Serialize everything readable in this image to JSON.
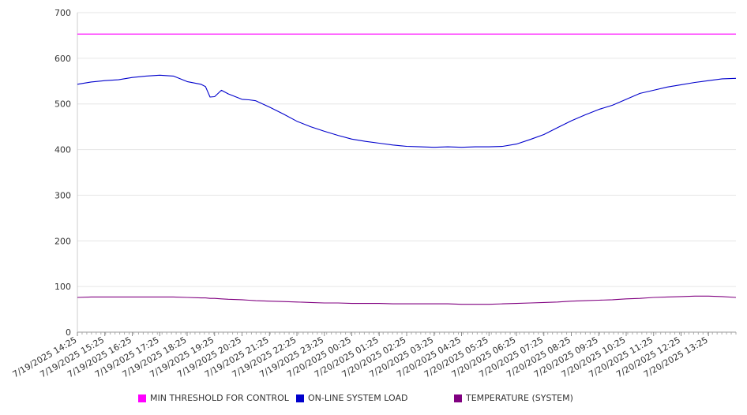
{
  "chart_data": {
    "type": "line",
    "title": "",
    "xlabel": "",
    "ylabel": "",
    "ylim": [
      0,
      700
    ],
    "y_ticks": [
      0,
      100,
      200,
      300,
      400,
      500,
      600,
      700
    ],
    "grid": "horizontal",
    "legend_position": "bottom",
    "x_tick_labels": [
      "7/19/2025 14:25",
      "7/19/2025 15:25",
      "7/19/2025 16:25",
      "7/19/2025 17:25",
      "7/19/2025 18:25",
      "7/19/2025 19:25",
      "7/19/2025 20:25",
      "7/19/2025 21:25",
      "7/19/2025 22:25",
      "7/19/2025 23:25",
      "7/20/2025 00:25",
      "7/20/2025 01:25",
      "7/20/2025 02:25",
      "7/20/2025 03:25",
      "7/20/2025 04:25",
      "7/20/2025 05:25",
      "7/20/2025 06:25",
      "7/20/2025 07:25",
      "7/20/2025 08:25",
      "7/20/2025 09:25",
      "7/20/2025 10:25",
      "7/20/2025 11:25",
      "7/20/2025 12:25",
      "7/20/2025 13:25"
    ],
    "x": [
      "7/19/2025 14:25",
      "7/19/2025 14:55",
      "7/19/2025 15:25",
      "7/19/2025 15:55",
      "7/19/2025 16:25",
      "7/19/2025 16:55",
      "7/19/2025 17:25",
      "7/19/2025 17:55",
      "7/19/2025 18:25",
      "7/19/2025 18:55",
      "7/19/2025 19:05",
      "7/19/2025 19:15",
      "7/19/2025 19:25",
      "7/19/2025 19:40",
      "7/19/2025 19:55",
      "7/19/2025 20:25",
      "7/19/2025 20:40",
      "7/19/2025 20:55",
      "7/19/2025 21:25",
      "7/19/2025 21:55",
      "7/19/2025 22:25",
      "7/19/2025 22:55",
      "7/19/2025 23:25",
      "7/19/2025 23:55",
      "7/20/2025 00:25",
      "7/20/2025 00:55",
      "7/20/2025 01:25",
      "7/20/2025 01:55",
      "7/20/2025 02:25",
      "7/20/2025 02:55",
      "7/20/2025 03:25",
      "7/20/2025 03:55",
      "7/20/2025 04:25",
      "7/20/2025 04:55",
      "7/20/2025 05:25",
      "7/20/2025 05:55",
      "7/20/2025 06:25",
      "7/20/2025 06:55",
      "7/20/2025 07:25",
      "7/20/2025 07:55",
      "7/20/2025 08:25",
      "7/20/2025 08:55",
      "7/20/2025 09:25",
      "7/20/2025 09:55",
      "7/20/2025 10:25",
      "7/20/2025 10:55",
      "7/20/2025 11:25",
      "7/20/2025 11:55",
      "7/20/2025 12:25",
      "7/20/2025 12:55",
      "7/20/2025 13:25",
      "7/20/2025 13:55",
      "7/20/2025 14:25"
    ],
    "series": [
      {
        "name": "MIN THRESHOLD FOR CONTROL",
        "color": "#ff00ff",
        "values": [
          653,
          653,
          653,
          653,
          653,
          653,
          653,
          653,
          653,
          653,
          653,
          653,
          653,
          653,
          653,
          653,
          653,
          653,
          653,
          653,
          653,
          653,
          653,
          653,
          653,
          653,
          653,
          653,
          653,
          653,
          653,
          653,
          653,
          653,
          653,
          653,
          653,
          653,
          653,
          653,
          653,
          653,
          653,
          653,
          653,
          653,
          653,
          653,
          653,
          653,
          653,
          653,
          653
        ]
      },
      {
        "name": "ON-LINE SYSTEM LOAD",
        "color": "#0000cc",
        "values": [
          543,
          548,
          551,
          553,
          558,
          561,
          563,
          561,
          549,
          543,
          538,
          515,
          516,
          530,
          522,
          510,
          509,
          507,
          493,
          478,
          462,
          450,
          440,
          431,
          423,
          418,
          414,
          410,
          407,
          406,
          405,
          406,
          405,
          406,
          406,
          407,
          412,
          422,
          433,
          448,
          463,
          476,
          488,
          497,
          510,
          523,
          530,
          537,
          542,
          547,
          551,
          555,
          556
        ]
      },
      {
        "name": "TEMPERATURE (SYSTEM)",
        "color": "#800080",
        "values": [
          76,
          77,
          77,
          77,
          77,
          77,
          77,
          77,
          76,
          75,
          75,
          74,
          74,
          73,
          72,
          71,
          70,
          69,
          68,
          67,
          66,
          65,
          64,
          64,
          63,
          63,
          63,
          62,
          62,
          62,
          62,
          62,
          61,
          61,
          61,
          62,
          63,
          64,
          65,
          66,
          68,
          69,
          70,
          71,
          73,
          74,
          76,
          77,
          78,
          79,
          79,
          78,
          76
        ]
      }
    ]
  }
}
